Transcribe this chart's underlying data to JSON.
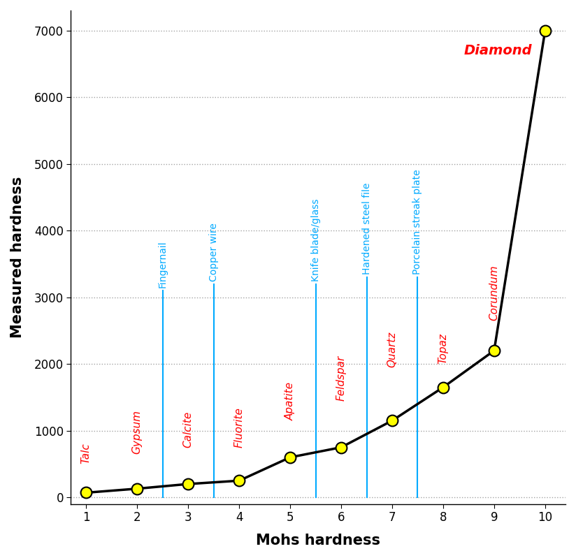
{
  "mohs_x": [
    1,
    2,
    3,
    4,
    5,
    6,
    7,
    8,
    9,
    10
  ],
  "measured_y": [
    70,
    130,
    200,
    250,
    600,
    750,
    1150,
    1650,
    2200,
    7000
  ],
  "mineral_labels": [
    "Talc",
    "Gypsum",
    "Calcite",
    "Fluorite",
    "Apatite",
    "Feldspar",
    "Quartz",
    "Topaz",
    "Corundum",
    "Diamond"
  ],
  "mineral_label_offsets_x": [
    0.0,
    0.0,
    0.0,
    0.0,
    0.0,
    0.0,
    0.0,
    0.0,
    0.0,
    -0.15
  ],
  "mineral_label_y_start": [
    500,
    650,
    750,
    750,
    1150,
    1450,
    1950,
    2000,
    2650,
    6700
  ],
  "everyday_labels": [
    "Fingernail",
    "Copper wire",
    "Knife blade/glass",
    "Hardened steel file",
    "Porcelain streak plate"
  ],
  "everyday_x": [
    2.5,
    3.5,
    5.5,
    6.5,
    7.5
  ],
  "everyday_line_top": [
    3100,
    3200,
    3200,
    3300,
    3300
  ],
  "xlabel": "Mohs hardness",
  "ylabel": "Measured hardness",
  "xlim": [
    0.7,
    10.4
  ],
  "ylim": [
    -100,
    7300
  ],
  "yticks": [
    0,
    1000,
    2000,
    3000,
    4000,
    5000,
    6000,
    7000
  ],
  "xticks": [
    1,
    2,
    3,
    4,
    5,
    6,
    7,
    8,
    9,
    10
  ],
  "mineral_color": "#ff0000",
  "everyday_color": "#00aaff",
  "line_color": "#000000",
  "marker_color": "#ffff00",
  "marker_edge_color": "#000000",
  "background_color": "#ffffff",
  "grid_color": "#999999"
}
